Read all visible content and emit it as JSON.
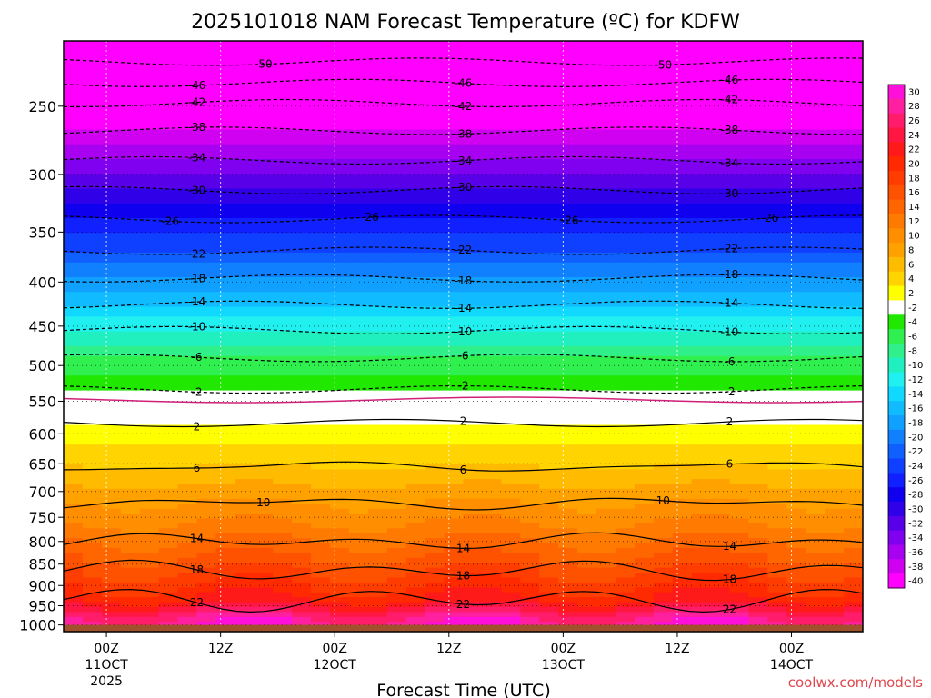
{
  "chart_data": {
    "type": "heatmap",
    "title": "2025101018 NAM Forecast Temperature (ºC) for KDFW",
    "xlabel": "Forecast Time (UTC)",
    "ylabel": "",
    "credit": "coolwx.com/models",
    "x_range_hours": [
      -4.5,
      79.5
    ],
    "x_ticks": [
      {
        "hour": 0,
        "label": "00Z",
        "sub1": "11OCT",
        "sub2": "2025"
      },
      {
        "hour": 12,
        "label": "12Z",
        "sub1": "",
        "sub2": ""
      },
      {
        "hour": 24,
        "label": "00Z",
        "sub1": "12OCT",
        "sub2": ""
      },
      {
        "hour": 36,
        "label": "12Z",
        "sub1": "",
        "sub2": ""
      },
      {
        "hour": 48,
        "label": "00Z",
        "sub1": "13OCT",
        "sub2": ""
      },
      {
        "hour": 60,
        "label": "12Z",
        "sub1": "",
        "sub2": ""
      },
      {
        "hour": 72,
        "label": "00Z",
        "sub1": "14OCT",
        "sub2": ""
      }
    ],
    "y_ticks_hpa": [
      "250",
      "300",
      "350",
      "400",
      "450",
      "500",
      "550",
      "600",
      "650",
      "700",
      "750",
      "800",
      "850",
      "900",
      "950",
      "1000"
    ],
    "colorbar": {
      "labels": [
        "30",
        "28",
        "26",
        "24",
        "22",
        "20",
        "18",
        "16",
        "14",
        "12",
        "10",
        "8",
        "6",
        "4",
        "2",
        "-2",
        "-4",
        "-6",
        "-8",
        "-10",
        "-12",
        "-14",
        "-16",
        "-18",
        "-20",
        "-22",
        "-24",
        "-26",
        "-28",
        "-30",
        "-32",
        "-34",
        "-36",
        "-38",
        "-40"
      ],
      "colors": [
        "#ff10d8",
        "#ff20a0",
        "#ff1c6a",
        "#ff1744",
        "#ff1a1a",
        "#ff2a00",
        "#ff3d00",
        "#ff5200",
        "#ff6600",
        "#ff7a00",
        "#ff8e00",
        "#ffa200",
        "#ffbb00",
        "#ffd400",
        "#ffff00",
        "#ffffff",
        "#20e800",
        "#30f050",
        "#30f08c",
        "#20f0c0",
        "#20f0f0",
        "#10d8ff",
        "#10bcff",
        "#10a0ff",
        "#1080ff",
        "#1060ff",
        "#1040ff",
        "#1020ff",
        "#1000f0",
        "#3000e8",
        "#5800e8",
        "#8000f0",
        "#a800f0",
        "#d000f0",
        "#ff00ff"
      ]
    },
    "isotherms": [
      {
        "t": -50,
        "p": 222,
        "labels": [
          "-50",
          "-50"
        ]
      },
      {
        "t": -46,
        "p": 235,
        "labels": [
          "-46",
          "-46",
          "-46"
        ]
      },
      {
        "t": -42,
        "p": 248,
        "labels": [
          "-42",
          "-42",
          "-42"
        ]
      },
      {
        "t": -38,
        "p": 267,
        "labels": [
          "-38",
          "-38",
          "-38"
        ]
      },
      {
        "t": -34,
        "p": 289,
        "labels": [
          "-34",
          "-34",
          "-34"
        ]
      },
      {
        "t": -30,
        "p": 313,
        "labels": [
          "-30",
          "-30",
          "-30"
        ]
      },
      {
        "t": -26,
        "p": 338,
        "labels": [
          "-26",
          "-26",
          "-26",
          "-26"
        ]
      },
      {
        "t": -22,
        "p": 368,
        "labels": [
          "-22",
          "-22",
          "-22"
        ]
      },
      {
        "t": -18,
        "p": 396,
        "labels": [
          "-18",
          "-18",
          "-18"
        ]
      },
      {
        "t": -14,
        "p": 425,
        "labels": [
          "-14",
          "-14",
          "-14"
        ]
      },
      {
        "t": -10,
        "p": 455,
        "labels": [
          "-10",
          "-10",
          "-10"
        ]
      },
      {
        "t": -6,
        "p": 490,
        "labels": [
          "-6",
          "-6",
          "-6"
        ]
      },
      {
        "t": -2,
        "p": 533,
        "labels": [
          "-2",
          "-2",
          "-2"
        ]
      },
      {
        "t": 2,
        "p": 583,
        "labels": [
          "2",
          "2",
          "2"
        ]
      },
      {
        "t": 6,
        "p": 655,
        "labels": [
          "6",
          "6",
          "6"
        ]
      },
      {
        "t": 10,
        "p": 722,
        "labels": [
          "10",
          "10"
        ]
      },
      {
        "t": 14,
        "p": 800,
        "labels": [
          "14",
          "14",
          "14"
        ]
      },
      {
        "t": 18,
        "p": 865,
        "labels": [
          "18",
          "18",
          "18"
        ]
      },
      {
        "t": 22,
        "p": 935,
        "labels": [
          "22",
          "22",
          "22"
        ]
      }
    ],
    "freezing_level_hpa": 548,
    "surface_hpa": 1000
  }
}
